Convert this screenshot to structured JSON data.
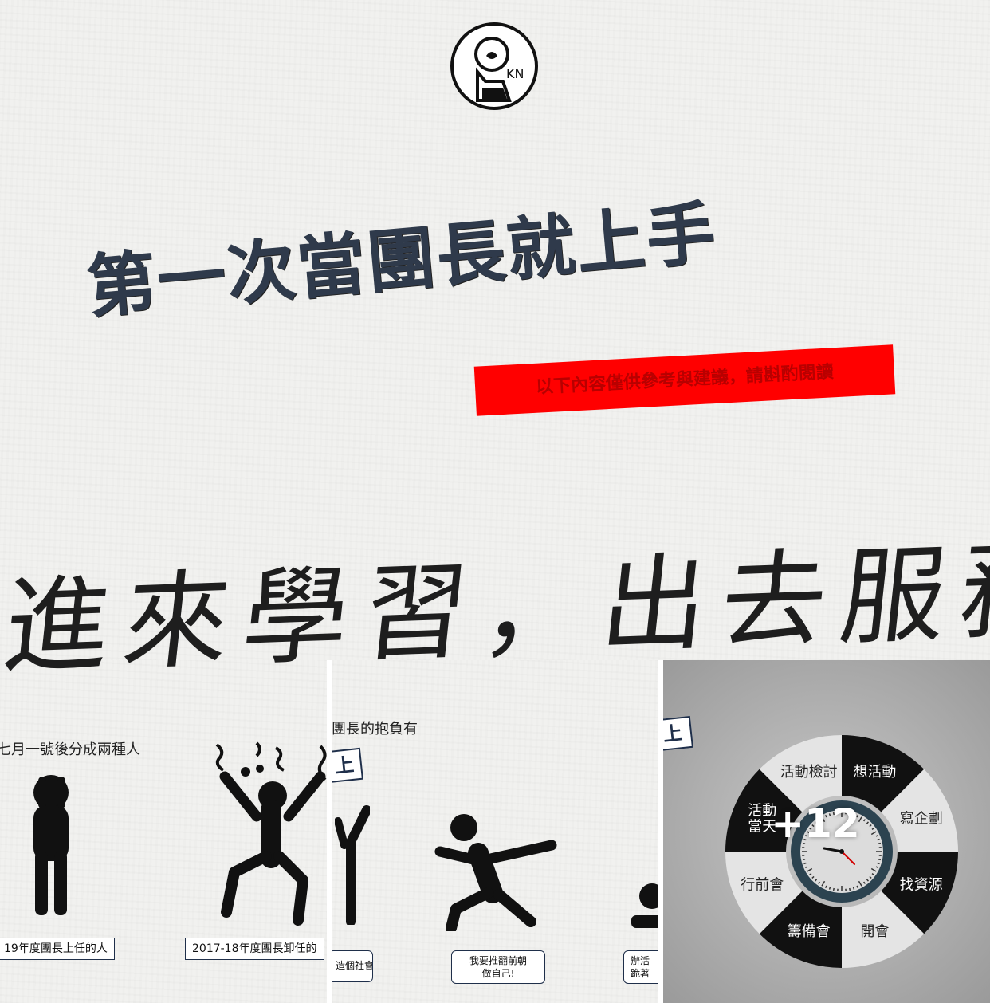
{
  "hero": {
    "title": "第一次當團長就上手",
    "disclaimer": "以下內容僅供參考與建議，請斟酌閱讀",
    "logo_text": "KN",
    "slogan": "進來學習，出去服務"
  },
  "tiles": [
    {
      "heading": "七月一號後分成兩種人",
      "captions": [
        "19年度團長上任的人",
        "2017-18年度團長卸任的"
      ]
    },
    {
      "heading": "團長的抱負有",
      "tag": "上",
      "bubbles": [
        "造個社會",
        "我要推翻前朝\n做自己!",
        "辦活\n跪著"
      ]
    },
    {
      "tag": "上",
      "wheel": {
        "segments": [
          "想活動",
          "寫企劃",
          "找資源",
          "開會",
          "籌備會",
          "行前會",
          "活動\n當天",
          "活動檢討"
        ]
      },
      "more_count": "+12"
    }
  ],
  "colors": {
    "title": "#2f3a4b",
    "accent_red": "#ff0000",
    "navy": "#1f2f4a",
    "wheel_dark": "#111111",
    "clock_ring": "#2c4350"
  }
}
